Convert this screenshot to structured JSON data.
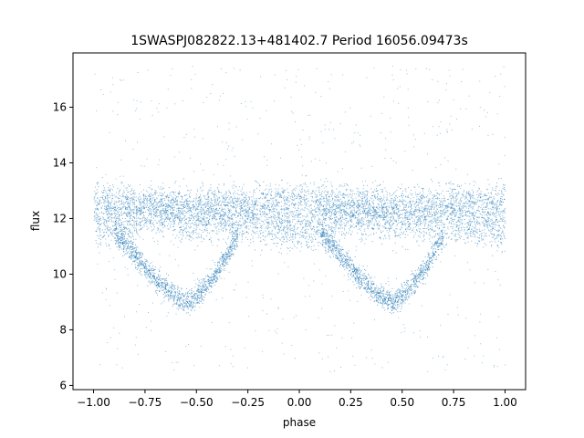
{
  "chart_data": {
    "type": "scatter",
    "title": "1SWASPJ082822.13+481402.7 Period 16056.09473s",
    "xlabel": "phase",
    "ylabel": "flux",
    "xlim": [
      -1.1,
      1.1
    ],
    "ylim": [
      5.85,
      17.95
    ],
    "grid": false,
    "marker_color": "#1f77b4",
    "x_ticks": [
      -1.0,
      -0.75,
      -0.5,
      -0.25,
      0.0,
      0.25,
      0.5,
      0.75,
      1.0
    ],
    "x_tick_labels": [
      "−1.00",
      "−0.75",
      "−0.50",
      "−0.25",
      "0.00",
      "0.25",
      "0.50",
      "0.75",
      "1.00"
    ],
    "y_ticks": [
      6,
      8,
      10,
      12,
      14,
      16
    ],
    "y_tick_labels": [
      "6",
      "8",
      "10",
      "12",
      "14",
      "16"
    ],
    "series": [
      {
        "description_points": "folded light curve; upper band ~12.5, middle band ~11.5-12.2, V-shaped eclipse branch with minimum ~9.0",
        "x_range": [
          -1.0,
          1.0
        ],
        "upper_band": {
          "x": [
            -1.0,
            -0.5,
            0.0,
            0.5,
            1.0
          ],
          "y": [
            12.6,
            12.5,
            12.6,
            12.5,
            12.6
          ]
        },
        "lower_band": {
          "x": [
            -1.0,
            -0.75,
            -0.5,
            -0.25,
            0.0,
            0.25,
            0.5,
            0.75,
            1.0
          ],
          "y": [
            11.6,
            12.1,
            11.9,
            11.9,
            11.6,
            12.1,
            11.9,
            11.9,
            11.6
          ]
        },
        "eclipse_branch": {
          "x": [
            -0.9,
            -0.8,
            -0.7,
            -0.6,
            -0.55,
            -0.5,
            -0.4,
            -0.3,
            0.1,
            0.2,
            0.3,
            0.4,
            0.45,
            0.5,
            0.6,
            0.7
          ],
          "y": [
            11.5,
            10.7,
            9.8,
            9.2,
            9.0,
            9.2,
            10.1,
            11.4,
            11.5,
            10.7,
            9.8,
            9.2,
            9.0,
            9.2,
            10.1,
            11.4
          ]
        }
      }
    ]
  }
}
